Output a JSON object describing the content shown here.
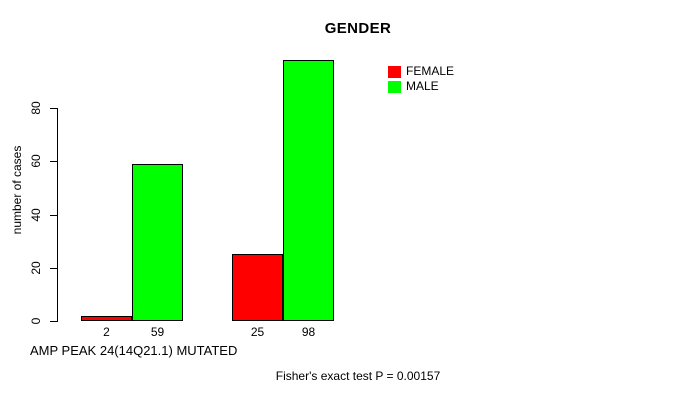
{
  "chart_data": {
    "type": "bar",
    "title": "GENDER",
    "ylabel": "number of cases",
    "xlabel": "AMP PEAK 24(14Q21.1) MUTATED",
    "annotation": "Fisher's exact test P = 0.00157",
    "yticks": [
      0,
      20,
      40,
      60,
      80
    ],
    "ylim": [
      0,
      80
    ],
    "grid": false,
    "legend_position": "top-right",
    "groups": 2,
    "series": [
      {
        "name": "FEMALE",
        "color": "#ff0000",
        "values": [
          2,
          25
        ]
      },
      {
        "name": "MALE",
        "color": "#00ff00",
        "values": [
          59,
          98
        ]
      }
    ],
    "bar_value_labels": [
      [
        "2",
        "59"
      ],
      [
        "25",
        "98"
      ]
    ]
  },
  "colors": {
    "axis": "#000000",
    "background": "#ffffff"
  }
}
